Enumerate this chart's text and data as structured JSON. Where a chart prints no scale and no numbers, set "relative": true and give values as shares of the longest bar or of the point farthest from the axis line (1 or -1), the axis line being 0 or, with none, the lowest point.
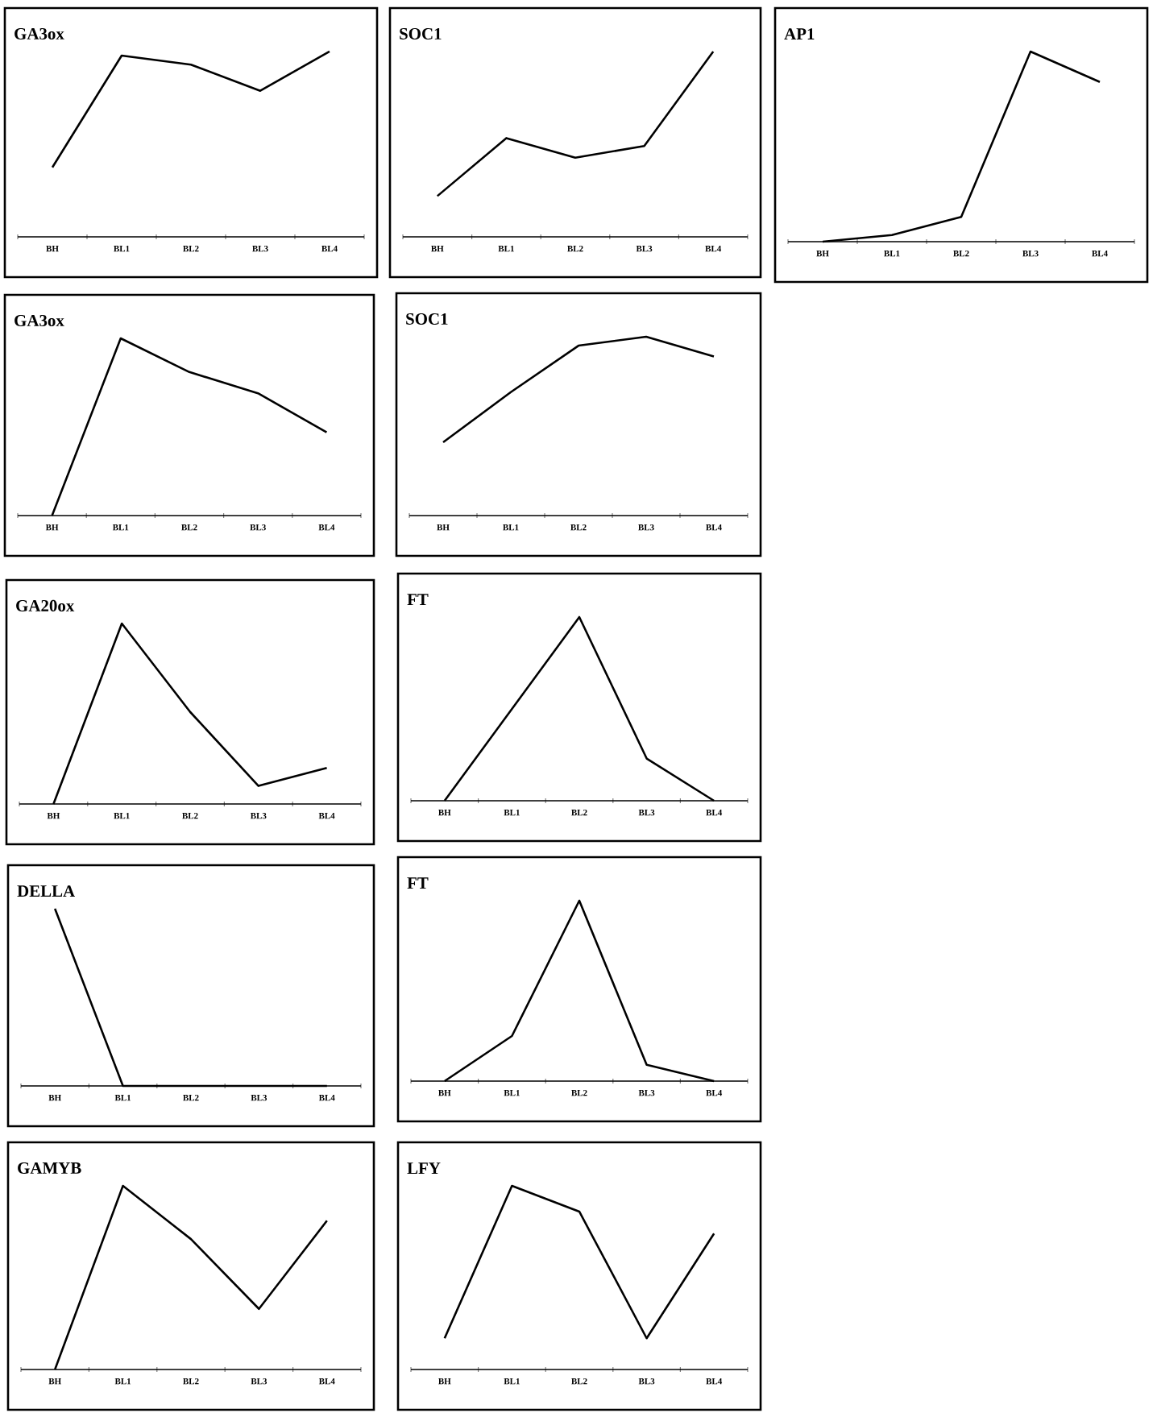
{
  "chart_data": [
    {
      "type": "line",
      "title": "GA3ox",
      "categories": [
        "BH",
        "BL1",
        "BL2",
        "BL3",
        "BL4"
      ],
      "values": [
        0.375,
        0.978,
        0.929,
        0.788,
        1
      ],
      "relative": true,
      "color": "#000000"
    },
    {
      "type": "line",
      "title": "SOC1",
      "categories": [
        "BH",
        "BL1",
        "BL2",
        "BL3",
        "BL4"
      ],
      "values": [
        0.22,
        0.533,
        0.427,
        0.49,
        1
      ],
      "relative": true,
      "color": "#000000"
    },
    {
      "type": "line",
      "title": "AP1",
      "categories": [
        "BH",
        "BL1",
        "BL2",
        "BL3",
        "BL4"
      ],
      "values": [
        0,
        0.035,
        0.13,
        1,
        0.84
      ],
      "relative": true,
      "color": "#000000"
    },
    {
      "type": "line",
      "title": "GA3ox",
      "categories": [
        "BH",
        "BL1",
        "BL2",
        "BL3",
        "BL4"
      ],
      "values": [
        0,
        1,
        0.81,
        0.69,
        0.47
      ],
      "relative": true,
      "color": "#000000"
    },
    {
      "type": "line",
      "title": "SOC1",
      "categories": [
        "BH",
        "BL1",
        "BL2",
        "BL3",
        "BL4"
      ],
      "values": [
        0.41,
        0.69,
        0.95,
        1,
        0.89
      ],
      "relative": true,
      "color": "#000000"
    },
    {
      "type": "line",
      "title": "GA20ox",
      "categories": [
        "BH",
        "BL1",
        "BL2",
        "BL3",
        "BL4"
      ],
      "values": [
        0,
        1,
        0.51,
        0.1,
        0.2
      ],
      "relative": true,
      "color": "#000000"
    },
    {
      "type": "line",
      "title": "FT",
      "categories": [
        "BH",
        "BL1",
        "BL2",
        "BL3",
        "BL4"
      ],
      "values": [
        0,
        0.5,
        1,
        0.23,
        0
      ],
      "relative": true,
      "color": "#000000"
    },
    {
      "type": "line",
      "title": "DELLA",
      "categories": [
        "BH",
        "BL1",
        "BL2",
        "BL3",
        "BL4"
      ],
      "values": [
        1,
        0,
        0,
        0,
        0
      ],
      "relative": true,
      "color": "#000000"
    },
    {
      "type": "line",
      "title": "FT",
      "categories": [
        "BH",
        "BL1",
        "BL2",
        "BL3",
        "BL4"
      ],
      "values": [
        0,
        0.25,
        1,
        0.09,
        0
      ],
      "relative": true,
      "color": "#000000"
    },
    {
      "type": "line",
      "title": "GAMYB",
      "categories": [
        "BH",
        "BL1",
        "BL2",
        "BL3",
        "BL4"
      ],
      "values": [
        0,
        1,
        0.71,
        0.33,
        0.81
      ],
      "relative": true,
      "color": "#000000"
    },
    {
      "type": "line",
      "title": "LFY",
      "categories": [
        "BH",
        "BL1",
        "BL2",
        "BL3",
        "BL4"
      ],
      "values": [
        0.17,
        1,
        0.86,
        0.17,
        0.74
      ],
      "relative": true,
      "color": "#000000"
    }
  ]
}
